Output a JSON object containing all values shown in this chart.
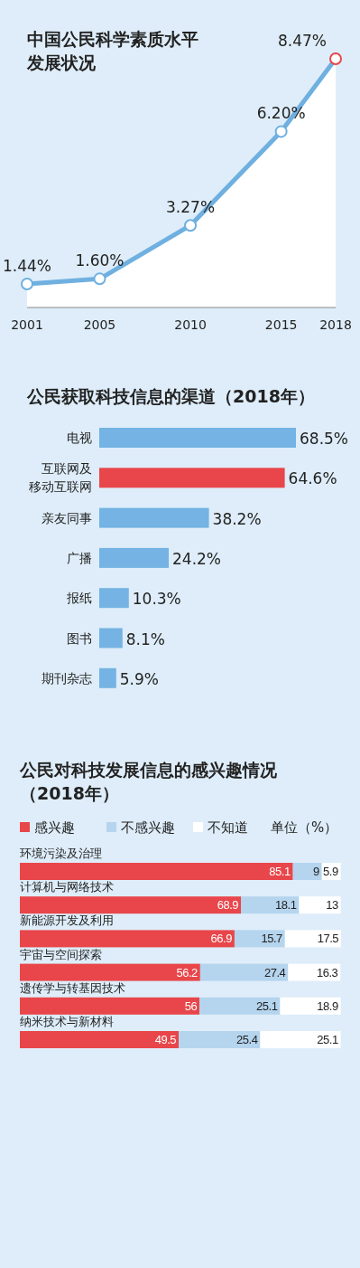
{
  "chart_data": [
    {
      "type": "line",
      "title": "中国公民科学素质水平发展状况",
      "x": [
        2001,
        2005,
        2010,
        2015,
        2018
      ],
      "xlim": [
        2001,
        2018
      ],
      "xticks": [
        2001,
        2005,
        2010,
        2015,
        2018
      ],
      "tick_labels": "x",
      "marker": "circle",
      "series": [
        {
          "color": "#6fb0e0",
          "colors": [
            "#6fb0e0",
            "#6fb0e0",
            "#6fb0e0",
            "#6fb0e0",
            "#e8464a"
          ],
          "values": [
            1.44,
            1.6,
            3.27,
            6.2,
            8.47
          ],
          "value_labels": [
            "1.44%",
            "1.60%",
            "3.27%",
            "6.20%",
            "8.47%"
          ]
        }
      ]
    },
    {
      "type": "bar",
      "orientation": "horizontal",
      "title": "公民获取科技信息的渠道（2018年）",
      "categories": [
        "电视",
        "互联网及移动互联网",
        "亲友同事",
        "广播",
        "报纸",
        "图书",
        "期刊杂志"
      ],
      "values": [
        68.5,
        64.6,
        38.2,
        24.2,
        10.3,
        8.1,
        5.9
      ],
      "value_labels": [
        "68.5%",
        "64.6%",
        "38.2%",
        "24.2%",
        "10.3%",
        "8.1%",
        "5.9%"
      ],
      "colors": [
        "#74b3e3",
        "#e8464a",
        "#74b3e3",
        "#74b3e3",
        "#74b3e3",
        "#74b3e3",
        "#74b3e3"
      ]
    },
    {
      "type": "bar",
      "orientation": "horizontal",
      "stacked": true,
      "data_labels": true,
      "legend": "top left",
      "title": "公民对科技发展信息的感兴趣情况（2018年）",
      "annotations": [
        "单位（%）"
      ],
      "categories": [
        "环境污染及治理",
        "计算机与网络技术",
        "新能源开发及利用",
        "宇宙与空间探索",
        "遗传学与转基因技术",
        "纳米技术与新材料"
      ],
      "series": [
        {
          "name": "感兴趣",
          "color": "#e8464a",
          "values": [
            85.1,
            68.9,
            66.9,
            56.2,
            56,
            49.5
          ]
        },
        {
          "name": "不感兴趣",
          "color": "#b5d4ee",
          "values": [
            9,
            18.1,
            15.7,
            27.4,
            25.1,
            25.4
          ]
        },
        {
          "name": "不知道",
          "color": "#ffffff",
          "values": [
            5.9,
            13,
            17.5,
            16.3,
            18.9,
            25.1
          ]
        }
      ]
    }
  ]
}
